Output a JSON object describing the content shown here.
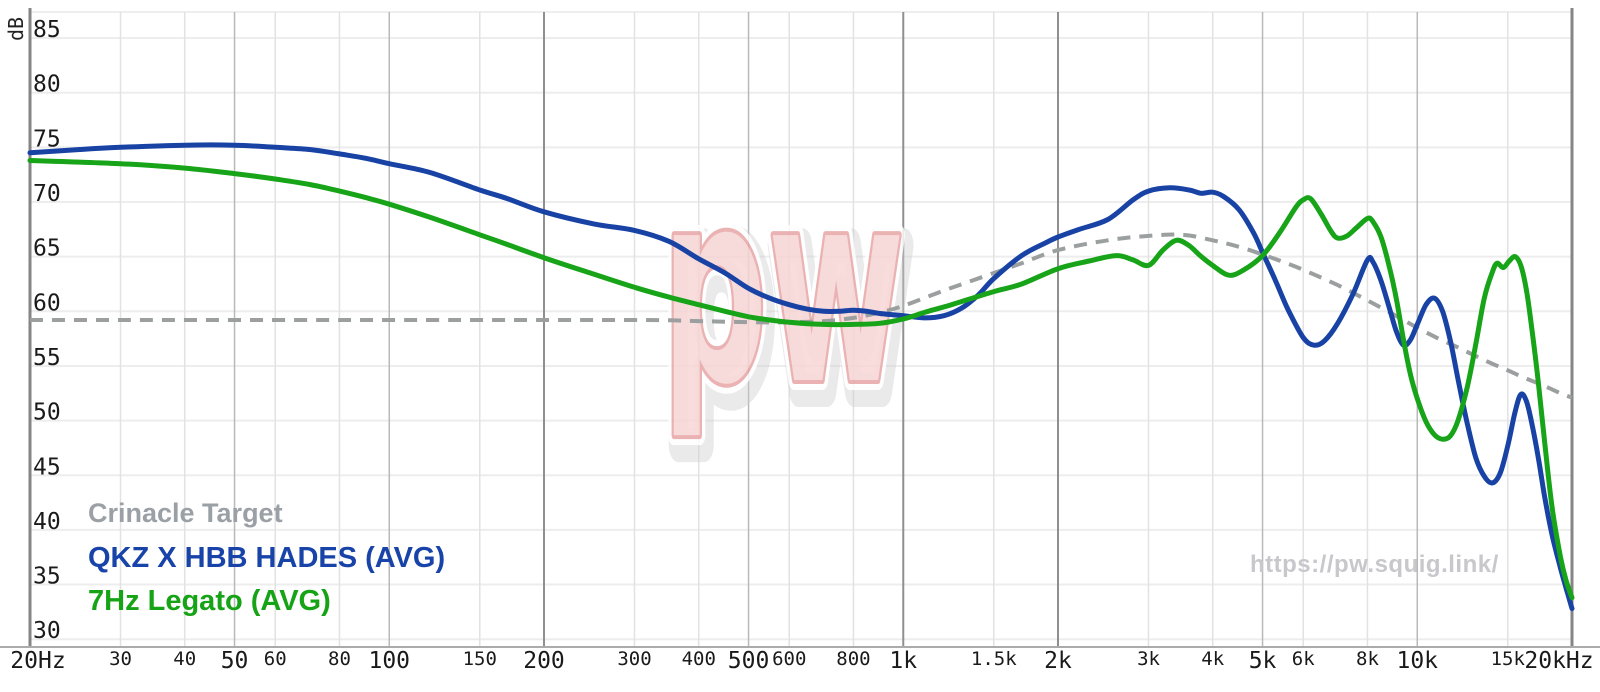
{
  "axis": {
    "y_unit": "dB"
  },
  "legend": {
    "items": [
      {
        "label": "Crinacle Target",
        "color": "#9aa0a5"
      },
      {
        "label": "QKZ X HBB HADES (AVG)",
        "color": "#1843a8"
      },
      {
        "label": "7Hz Legato (AVG)",
        "color": "#16a316"
      }
    ]
  },
  "footer": {
    "url": "https://pw.squig.link/"
  },
  "watermark": {
    "text": "pw"
  },
  "chart_data": {
    "type": "line",
    "title": "",
    "xlabel": "Frequency (Hz)",
    "ylabel": "dB",
    "x_axis": {
      "scale": "log",
      "min_hz": 20,
      "max_hz": 20000,
      "ticks": [
        {
          "hz": 20,
          "label": "20Hz",
          "size": "major",
          "emphasis": "spine"
        },
        {
          "hz": 30,
          "label": "30",
          "size": "minor",
          "emphasis": "minor"
        },
        {
          "hz": 40,
          "label": "40",
          "size": "minor",
          "emphasis": "minor"
        },
        {
          "hz": 50,
          "label": "50",
          "size": "major",
          "emphasis": "mid"
        },
        {
          "hz": 60,
          "label": "60",
          "size": "minor",
          "emphasis": "minor"
        },
        {
          "hz": 80,
          "label": "80",
          "size": "minor",
          "emphasis": "minor"
        },
        {
          "hz": 100,
          "label": "100",
          "size": "major",
          "emphasis": "mid"
        },
        {
          "hz": 150,
          "label": "150",
          "size": "minor",
          "emphasis": "minor"
        },
        {
          "hz": 200,
          "label": "200",
          "size": "major",
          "emphasis": "dark"
        },
        {
          "hz": 300,
          "label": "300",
          "size": "minor",
          "emphasis": "minor"
        },
        {
          "hz": 400,
          "label": "400",
          "size": "minor",
          "emphasis": "minor"
        },
        {
          "hz": 500,
          "label": "500",
          "size": "major",
          "emphasis": "mid"
        },
        {
          "hz": 600,
          "label": "600",
          "size": "minor",
          "emphasis": "minor"
        },
        {
          "hz": 800,
          "label": "800",
          "size": "minor",
          "emphasis": "minor"
        },
        {
          "hz": 1000,
          "label": "1k",
          "size": "major",
          "emphasis": "dark"
        },
        {
          "hz": 1500,
          "label": "1.5k",
          "size": "minor",
          "emphasis": "minor"
        },
        {
          "hz": 2000,
          "label": "2k",
          "size": "major",
          "emphasis": "dark"
        },
        {
          "hz": 3000,
          "label": "3k",
          "size": "minor",
          "emphasis": "minor"
        },
        {
          "hz": 4000,
          "label": "4k",
          "size": "minor",
          "emphasis": "minor"
        },
        {
          "hz": 5000,
          "label": "5k",
          "size": "major",
          "emphasis": "mid"
        },
        {
          "hz": 6000,
          "label": "6k",
          "size": "minor",
          "emphasis": "minor"
        },
        {
          "hz": 8000,
          "label": "8k",
          "size": "minor",
          "emphasis": "minor"
        },
        {
          "hz": 10000,
          "label": "10k",
          "size": "major",
          "emphasis": "mid"
        },
        {
          "hz": 15000,
          "label": "15k",
          "size": "minor",
          "emphasis": "minor"
        },
        {
          "hz": 20000,
          "label": "20kHz",
          "size": "major",
          "emphasis": "spine"
        }
      ]
    },
    "y_axis": {
      "unit": "dB",
      "min": 30,
      "max": 85,
      "tick_step": 5,
      "ticks": [
        85,
        80,
        75,
        70,
        65,
        60,
        55,
        50,
        45,
        40,
        35,
        30
      ]
    },
    "grid": true,
    "legend_position": "bottom-left",
    "series": [
      {
        "name": "Crinacle Target",
        "color": "#9b9fa0",
        "style": "dashed",
        "points": [
          [
            20,
            59.2
          ],
          [
            100,
            59.2
          ],
          [
            300,
            59.2
          ],
          [
            400,
            59.1
          ],
          [
            500,
            59.0
          ],
          [
            600,
            59.0
          ],
          [
            700,
            59.1
          ],
          [
            800,
            59.4
          ],
          [
            900,
            59.9
          ],
          [
            1000,
            60.5
          ],
          [
            1200,
            61.9
          ],
          [
            1500,
            63.5
          ],
          [
            1700,
            64.4
          ],
          [
            2000,
            65.6
          ],
          [
            2500,
            66.5
          ],
          [
            3000,
            66.9
          ],
          [
            3500,
            67.0
          ],
          [
            4000,
            66.5
          ],
          [
            4500,
            65.9
          ],
          [
            5000,
            65.2
          ],
          [
            5500,
            64.5
          ],
          [
            6000,
            63.8
          ],
          [
            7000,
            62.4
          ],
          [
            8000,
            61.0
          ],
          [
            9000,
            59.7
          ],
          [
            10000,
            58.5
          ],
          [
            11000,
            57.5
          ],
          [
            12000,
            56.7
          ],
          [
            13000,
            55.9
          ],
          [
            14000,
            55.2
          ],
          [
            15000,
            54.6
          ],
          [
            16000,
            54.0
          ],
          [
            17000,
            53.5
          ],
          [
            18000,
            53.0
          ],
          [
            19000,
            52.5
          ],
          [
            20000,
            52.1
          ]
        ]
      },
      {
        "name": "QKZ X HBB HADES (AVG)",
        "color": "#1843a5",
        "style": "solid",
        "points": [
          [
            20,
            74.5
          ],
          [
            25,
            74.8
          ],
          [
            30,
            75.0
          ],
          [
            40,
            75.2
          ],
          [
            50,
            75.2
          ],
          [
            60,
            75.0
          ],
          [
            70,
            74.8
          ],
          [
            80,
            74.4
          ],
          [
            90,
            74.0
          ],
          [
            100,
            73.5
          ],
          [
            120,
            72.7
          ],
          [
            150,
            71.1
          ],
          [
            170,
            70.3
          ],
          [
            200,
            69.1
          ],
          [
            250,
            68.0
          ],
          [
            300,
            67.4
          ],
          [
            350,
            66.4
          ],
          [
            400,
            64.8
          ],
          [
            450,
            63.5
          ],
          [
            500,
            62.1
          ],
          [
            550,
            61.2
          ],
          [
            600,
            60.6
          ],
          [
            650,
            60.2
          ],
          [
            700,
            60.0
          ],
          [
            750,
            60.0
          ],
          [
            800,
            60.1
          ],
          [
            850,
            60.0
          ],
          [
            900,
            59.8
          ],
          [
            1000,
            59.6
          ],
          [
            1100,
            59.4
          ],
          [
            1200,
            59.6
          ],
          [
            1300,
            60.3
          ],
          [
            1400,
            61.5
          ],
          [
            1500,
            63.0
          ],
          [
            1700,
            65.1
          ],
          [
            1900,
            66.3
          ],
          [
            2000,
            66.8
          ],
          [
            2200,
            67.5
          ],
          [
            2500,
            68.4
          ],
          [
            2800,
            70.2
          ],
          [
            3000,
            71.0
          ],
          [
            3300,
            71.3
          ],
          [
            3600,
            71.1
          ],
          [
            3800,
            70.8
          ],
          [
            4000,
            70.9
          ],
          [
            4200,
            70.5
          ],
          [
            4500,
            69.3
          ],
          [
            4800,
            67.2
          ],
          [
            5000,
            65.4
          ],
          [
            5300,
            62.8
          ],
          [
            5600,
            60.2
          ],
          [
            6000,
            57.6
          ],
          [
            6300,
            56.9
          ],
          [
            6600,
            57.3
          ],
          [
            7000,
            58.9
          ],
          [
            7500,
            61.6
          ],
          [
            8000,
            64.7
          ],
          [
            8200,
            64.5
          ],
          [
            8500,
            62.8
          ],
          [
            8800,
            60.5
          ],
          [
            9100,
            58.2
          ],
          [
            9400,
            56.9
          ],
          [
            9700,
            57.4
          ],
          [
            10000,
            58.8
          ],
          [
            10400,
            60.6
          ],
          [
            10800,
            61.2
          ],
          [
            11200,
            60.0
          ],
          [
            11600,
            57.3
          ],
          [
            12000,
            53.8
          ],
          [
            12500,
            49.8
          ],
          [
            13000,
            46.6
          ],
          [
            13500,
            44.9
          ],
          [
            14000,
            44.3
          ],
          [
            14500,
            45.2
          ],
          [
            15000,
            47.7
          ],
          [
            15500,
            50.8
          ],
          [
            15900,
            52.4
          ],
          [
            16300,
            51.8
          ],
          [
            16700,
            49.8
          ],
          [
            17200,
            46.6
          ],
          [
            17700,
            43.0
          ],
          [
            18300,
            39.5
          ],
          [
            19000,
            36.5
          ],
          [
            19500,
            34.6
          ],
          [
            20000,
            32.8
          ]
        ]
      },
      {
        "name": "7Hz Legato (AVG)",
        "color": "#18a418",
        "style": "solid",
        "points": [
          [
            20,
            73.8
          ],
          [
            30,
            73.5
          ],
          [
            40,
            73.1
          ],
          [
            50,
            72.6
          ],
          [
            60,
            72.1
          ],
          [
            70,
            71.6
          ],
          [
            80,
            71.0
          ],
          [
            90,
            70.4
          ],
          [
            100,
            69.8
          ],
          [
            120,
            68.6
          ],
          [
            150,
            67.0
          ],
          [
            170,
            66.1
          ],
          [
            200,
            64.9
          ],
          [
            250,
            63.4
          ],
          [
            300,
            62.2
          ],
          [
            350,
            61.3
          ],
          [
            400,
            60.6
          ],
          [
            450,
            60.0
          ],
          [
            500,
            59.5
          ],
          [
            550,
            59.2
          ],
          [
            600,
            59.0
          ],
          [
            700,
            58.8
          ],
          [
            800,
            58.8
          ],
          [
            900,
            58.9
          ],
          [
            1000,
            59.3
          ],
          [
            1100,
            59.9
          ],
          [
            1200,
            60.4
          ],
          [
            1300,
            60.9
          ],
          [
            1500,
            61.8
          ],
          [
            1700,
            62.5
          ],
          [
            2000,
            63.9
          ],
          [
            2300,
            64.6
          ],
          [
            2600,
            65.1
          ],
          [
            2800,
            64.7
          ],
          [
            3000,
            64.2
          ],
          [
            3200,
            65.6
          ],
          [
            3400,
            66.5
          ],
          [
            3600,
            66.0
          ],
          [
            3800,
            65.0
          ],
          [
            4000,
            64.2
          ],
          [
            4300,
            63.3
          ],
          [
            4600,
            63.8
          ],
          [
            5000,
            65.1
          ],
          [
            5400,
            67.2
          ],
          [
            5800,
            69.5
          ],
          [
            6000,
            70.2
          ],
          [
            6200,
            70.3
          ],
          [
            6500,
            68.9
          ],
          [
            6800,
            67.3
          ],
          [
            7000,
            66.7
          ],
          [
            7300,
            66.9
          ],
          [
            7600,
            67.6
          ],
          [
            8000,
            68.5
          ],
          [
            8200,
            68.2
          ],
          [
            8500,
            66.8
          ],
          [
            8800,
            64.3
          ],
          [
            9100,
            61.2
          ],
          [
            9400,
            57.4
          ],
          [
            9700,
            54.2
          ],
          [
            10000,
            52.0
          ],
          [
            10400,
            49.9
          ],
          [
            10800,
            48.7
          ],
          [
            11200,
            48.3
          ],
          [
            11600,
            48.6
          ],
          [
            12000,
            50.0
          ],
          [
            12500,
            53.0
          ],
          [
            13000,
            57.0
          ],
          [
            13500,
            61.2
          ],
          [
            14000,
            63.6
          ],
          [
            14300,
            64.4
          ],
          [
            14700,
            64.0
          ],
          [
            15100,
            64.6
          ],
          [
            15500,
            65.0
          ],
          [
            15900,
            64.2
          ],
          [
            16300,
            62.0
          ],
          [
            16700,
            58.5
          ],
          [
            17200,
            53.5
          ],
          [
            17700,
            48.0
          ],
          [
            18300,
            42.0
          ],
          [
            19000,
            37.5
          ],
          [
            19500,
            35.3
          ],
          [
            20000,
            33.8
          ]
        ]
      }
    ]
  }
}
